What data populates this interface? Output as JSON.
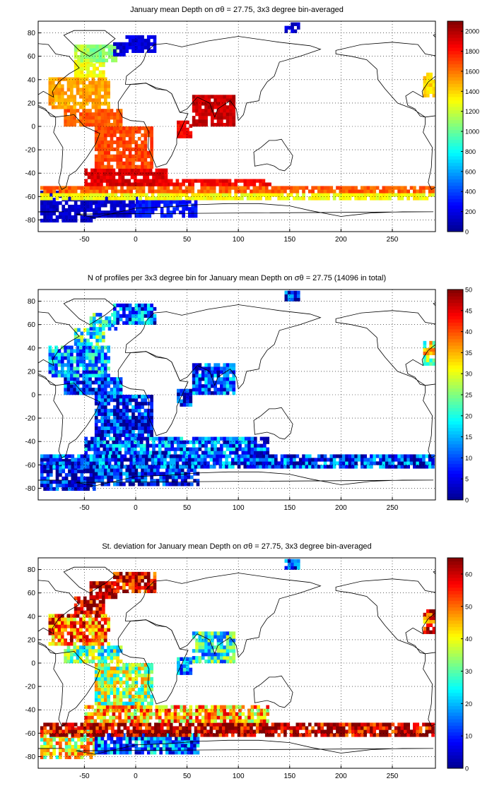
{
  "colormap": [
    "#00008f",
    "#0000ff",
    "#0080ff",
    "#00ffff",
    "#80ff80",
    "#ffff00",
    "#ff8000",
    "#ff0000",
    "#800000"
  ],
  "chart_data": [
    {
      "type": "heatmap",
      "title": "January mean Depth on σθ = 27.75, 3x3 degree bin-averaged",
      "xlim": [
        -95,
        292
      ],
      "ylim": [
        -90,
        90
      ],
      "x_ticks": [
        -50,
        0,
        50,
        100,
        150,
        200,
        250
      ],
      "y_ticks": [
        80,
        60,
        40,
        20,
        0,
        -20,
        -40,
        -60,
        -80
      ],
      "grid": true,
      "colorbar": {
        "min": 0,
        "max": 2100,
        "ticks": [
          0,
          200,
          400,
          600,
          800,
          1000,
          1200,
          1400,
          1600,
          1800,
          2000
        ]
      },
      "regions": [
        {
          "x": [
            -93,
            -40
          ],
          "y": [
            -82,
            -57
          ],
          "value": 130
        },
        {
          "x": [
            -40,
            0
          ],
          "y": [
            -78,
            -62
          ],
          "value": 160
        },
        {
          "x": [
            0,
            60
          ],
          "y": [
            -78,
            -63
          ],
          "value": 300
        },
        {
          "x": [
            -93,
            290
          ],
          "y": [
            -63,
            -57
          ],
          "value": 1300
        },
        {
          "x": [
            -93,
            290
          ],
          "y": [
            -57,
            -51
          ],
          "value": 1650
        },
        {
          "x": [
            0,
            130
          ],
          "y": [
            -51,
            -45
          ],
          "value": 1850
        },
        {
          "x": [
            -50,
            30
          ],
          "y": [
            -51,
            -36
          ],
          "value": 1900
        },
        {
          "x": [
            -40,
            15
          ],
          "y": [
            -36,
            0
          ],
          "value": 1700
        },
        {
          "x": [
            -70,
            -15
          ],
          "y": [
            0,
            15
          ],
          "value": 1650
        },
        {
          "x": [
            -85,
            -25
          ],
          "y": [
            15,
            42
          ],
          "value": 1500
        },
        {
          "x": [
            -60,
            -30
          ],
          "y": [
            42,
            55
          ],
          "value": 1300
        },
        {
          "x": [
            -60,
            -45
          ],
          "y": [
            55,
            68
          ],
          "value": 1150
        },
        {
          "x": [
            -45,
            -20
          ],
          "y": [
            55,
            68
          ],
          "value": 1050
        },
        {
          "x": [
            -22,
            -10
          ],
          "y": [
            60,
            70
          ],
          "value": 150
        },
        {
          "x": [
            -10,
            20
          ],
          "y": [
            63,
            78
          ],
          "value": 180
        },
        {
          "x": [
            55,
            95
          ],
          "y": [
            0,
            25
          ],
          "value": 1950
        },
        {
          "x": [
            40,
            55
          ],
          "y": [
            -10,
            5
          ],
          "value": 1850
        },
        {
          "x": [
            280,
            292
          ],
          "y": [
            25,
            45
          ],
          "value": 1400
        },
        {
          "x": [
            145,
            160
          ],
          "y": [
            80,
            88
          ],
          "value": 150
        }
      ]
    },
    {
      "type": "heatmap",
      "title": "N of profiles per 3x3 degree bin for January mean Depth on σθ = 27.75 (14096 in total)",
      "xlim": [
        -95,
        292
      ],
      "ylim": [
        -90,
        90
      ],
      "x_ticks": [
        -50,
        0,
        50,
        100,
        150,
        200,
        250
      ],
      "y_ticks": [
        80,
        60,
        40,
        20,
        0,
        -20,
        -40,
        -60,
        -80
      ],
      "grid": true,
      "colorbar": {
        "min": 0,
        "max": 50,
        "ticks": [
          0,
          5,
          10,
          15,
          20,
          25,
          30,
          35,
          40,
          45,
          50
        ]
      },
      "regions": [
        {
          "x": [
            -93,
            -40
          ],
          "y": [
            -82,
            -57
          ],
          "value": 4
        },
        {
          "x": [
            -40,
            60
          ],
          "y": [
            -78,
            -62
          ],
          "value": 6
        },
        {
          "x": [
            -93,
            290
          ],
          "y": [
            -63,
            -51
          ],
          "value": 8
        },
        {
          "x": [
            -50,
            130
          ],
          "y": [
            -51,
            -36
          ],
          "value": 10
        },
        {
          "x": [
            -40,
            15
          ],
          "y": [
            -36,
            0
          ],
          "value": 6
        },
        {
          "x": [
            -70,
            -15
          ],
          "y": [
            0,
            15
          ],
          "value": 8
        },
        {
          "x": [
            -85,
            -25
          ],
          "y": [
            15,
            42
          ],
          "value": 14
        },
        {
          "x": [
            -60,
            -30
          ],
          "y": [
            42,
            55
          ],
          "value": 20
        },
        {
          "x": [
            -45,
            -20
          ],
          "y": [
            55,
            68
          ],
          "value": 18
        },
        {
          "x": [
            -22,
            20
          ],
          "y": [
            60,
            78
          ],
          "value": 10
        },
        {
          "x": [
            55,
            95
          ],
          "y": [
            0,
            25
          ],
          "value": 9
        },
        {
          "x": [
            40,
            55
          ],
          "y": [
            -10,
            5
          ],
          "value": 5
        },
        {
          "x": [
            280,
            292
          ],
          "y": [
            25,
            45
          ],
          "value": 28
        },
        {
          "x": [
            145,
            160
          ],
          "y": [
            80,
            88
          ],
          "value": 5
        }
      ]
    },
    {
      "type": "heatmap",
      "title": "St. deviation for January mean Depth on σθ = 27.75, 3x3 degree bin-averaged",
      "xlim": [
        -95,
        292
      ],
      "ylim": [
        -90,
        90
      ],
      "x_ticks": [
        -50,
        0,
        50,
        100,
        150,
        200,
        250
      ],
      "y_ticks": [
        80,
        60,
        40,
        20,
        0,
        -20,
        -40,
        -60,
        -80
      ],
      "grid": true,
      "colorbar": {
        "min": 0,
        "max": 65,
        "ticks": [
          0,
          10,
          20,
          30,
          40,
          50,
          60
        ]
      },
      "regions": [
        {
          "x": [
            -93,
            -40
          ],
          "y": [
            -82,
            -57
          ],
          "value": 40
        },
        {
          "x": [
            -40,
            60
          ],
          "y": [
            -78,
            -62
          ],
          "value": 15
        },
        {
          "x": [
            -93,
            290
          ],
          "y": [
            -63,
            -51
          ],
          "value": 62
        },
        {
          "x": [
            -50,
            130
          ],
          "y": [
            -51,
            -36
          ],
          "value": 45
        },
        {
          "x": [
            -40,
            15
          ],
          "y": [
            -36,
            0
          ],
          "value": 35
        },
        {
          "x": [
            -70,
            -15
          ],
          "y": [
            0,
            15
          ],
          "value": 30
        },
        {
          "x": [
            -85,
            -25
          ],
          "y": [
            15,
            42
          ],
          "value": 50
        },
        {
          "x": [
            -60,
            -30
          ],
          "y": [
            42,
            55
          ],
          "value": 63
        },
        {
          "x": [
            -45,
            -20
          ],
          "y": [
            55,
            68
          ],
          "value": 63
        },
        {
          "x": [
            -22,
            20
          ],
          "y": [
            60,
            78
          ],
          "value": 60
        },
        {
          "x": [
            55,
            95
          ],
          "y": [
            0,
            25
          ],
          "value": 25
        },
        {
          "x": [
            40,
            55
          ],
          "y": [
            -10,
            5
          ],
          "value": 20
        },
        {
          "x": [
            280,
            292
          ],
          "y": [
            25,
            45
          ],
          "value": 55
        },
        {
          "x": [
            145,
            160
          ],
          "y": [
            80,
            88
          ],
          "value": 8
        }
      ]
    }
  ]
}
